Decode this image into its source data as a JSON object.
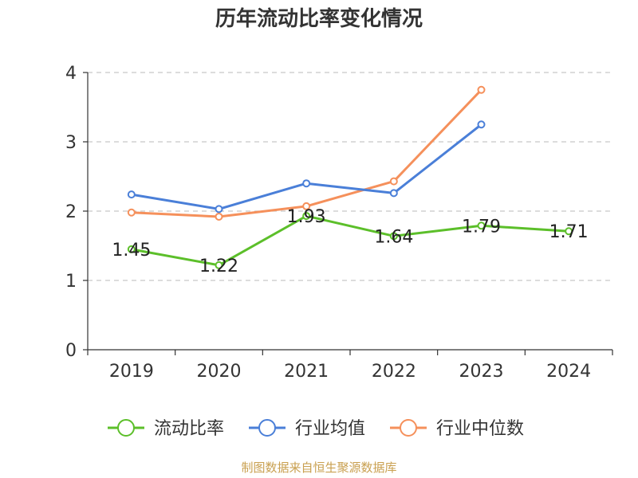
{
  "chart_data": {
    "type": "line",
    "title": "历年流动比率变化情况",
    "categories": [
      "2019",
      "2020",
      "2021",
      "2022",
      "2023",
      "2024"
    ],
    "ylim": [
      0,
      4
    ],
    "yticks": [
      "0",
      "1",
      "2",
      "3",
      "4"
    ],
    "grid": true,
    "legend_position": "bottom",
    "series": [
      {
        "name": "流动比率",
        "color": "#5cbf2a",
        "values": [
          1.45,
          1.22,
          1.93,
          1.64,
          1.79,
          1.71
        ],
        "labels": [
          "1.45",
          "1.22",
          "1.93",
          "1.64",
          "1.79",
          "1.71"
        ]
      },
      {
        "name": "行业均值",
        "color": "#4a7fd8",
        "values": [
          2.24,
          2.03,
          2.4,
          2.26,
          3.25,
          null
        ]
      },
      {
        "name": "行业中位数",
        "color": "#f5905b",
        "values": [
          1.98,
          1.92,
          2.07,
          2.43,
          3.75,
          null
        ]
      }
    ]
  },
  "source_text": "制图数据来自恒生聚源数据库"
}
